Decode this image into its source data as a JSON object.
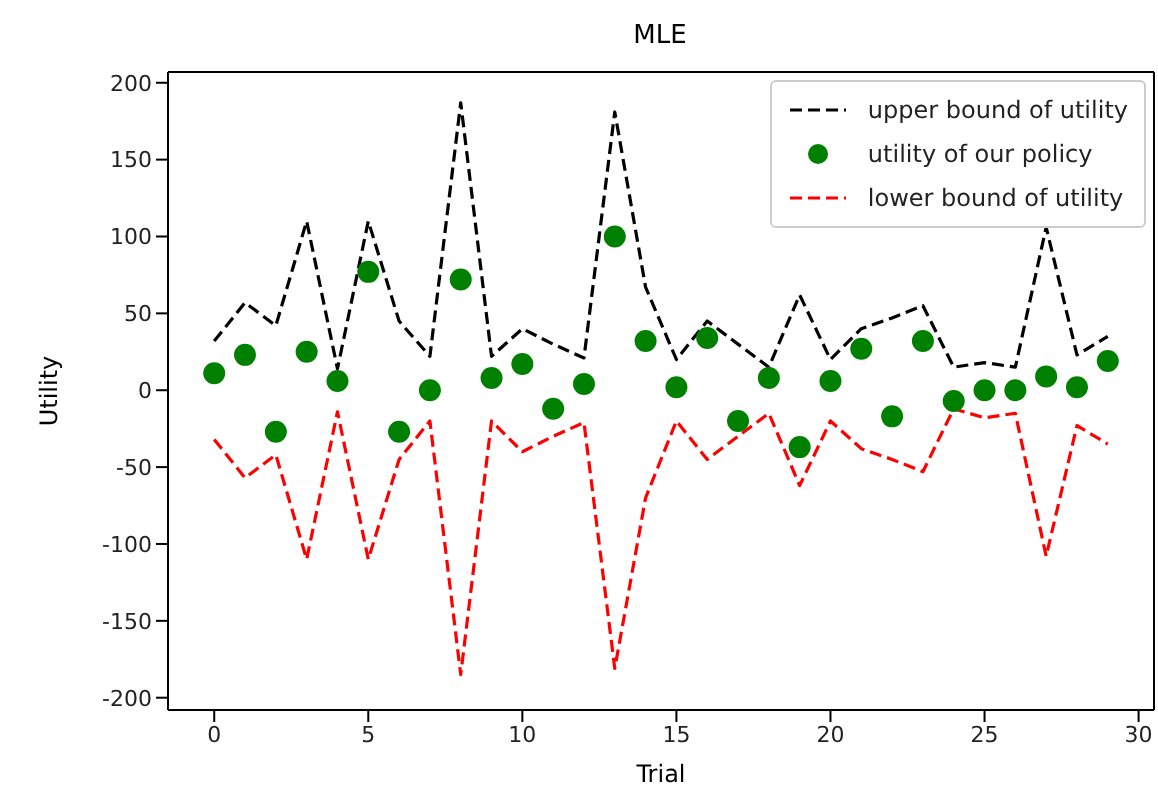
{
  "chart_data": {
    "type": "line",
    "title": "MLE",
    "xlabel": "Trial",
    "ylabel": "Utility",
    "x": [
      0,
      1,
      2,
      3,
      4,
      5,
      6,
      7,
      8,
      9,
      10,
      11,
      12,
      13,
      14,
      15,
      16,
      17,
      18,
      19,
      20,
      21,
      22,
      23,
      24,
      25,
      26,
      27,
      28,
      29
    ],
    "series": [
      {
        "name": "upper bound of utility",
        "line_style": "dashed",
        "color": "#000000",
        "values": [
          32,
          57,
          42,
          110,
          14,
          110,
          45,
          22,
          187,
          22,
          40,
          30,
          21,
          181,
          67,
          20,
          45,
          30,
          15,
          62,
          20,
          40,
          47,
          55,
          15,
          18,
          15,
          106,
          23,
          35
        ]
      },
      {
        "name": "utility of our policy",
        "type": "scatter",
        "marker": "circle",
        "color": "#008000",
        "values": [
          11,
          23,
          -27,
          25,
          6,
          77,
          -27,
          0,
          72,
          8,
          17,
          -12,
          4,
          100,
          32,
          2,
          34,
          -20,
          8,
          -37,
          6,
          27,
          -17,
          32,
          -7,
          0,
          0,
          9,
          2,
          19
        ]
      },
      {
        "name": "lower bound of utility",
        "line_style": "dashed",
        "color": "#ff0000",
        "values": [
          -32,
          -57,
          -42,
          -110,
          -14,
          -110,
          -45,
          -20,
          -185,
          -20,
          -40,
          -30,
          -21,
          -181,
          -70,
          -20,
          -45,
          -30,
          -15,
          -62,
          -20,
          -38,
          -45,
          -53,
          -12,
          -18,
          -15,
          -108,
          -23,
          -35
        ]
      }
    ],
    "xlim": [
      -1.5,
      30.5
    ],
    "xticks": [
      0,
      5,
      10,
      15,
      20,
      25,
      30
    ],
    "ylim": [
      -208,
      207
    ],
    "yticks": [
      -200,
      -150,
      -100,
      -50,
      0,
      50,
      100,
      150,
      200
    ],
    "grid": false,
    "legend": "top right"
  }
}
